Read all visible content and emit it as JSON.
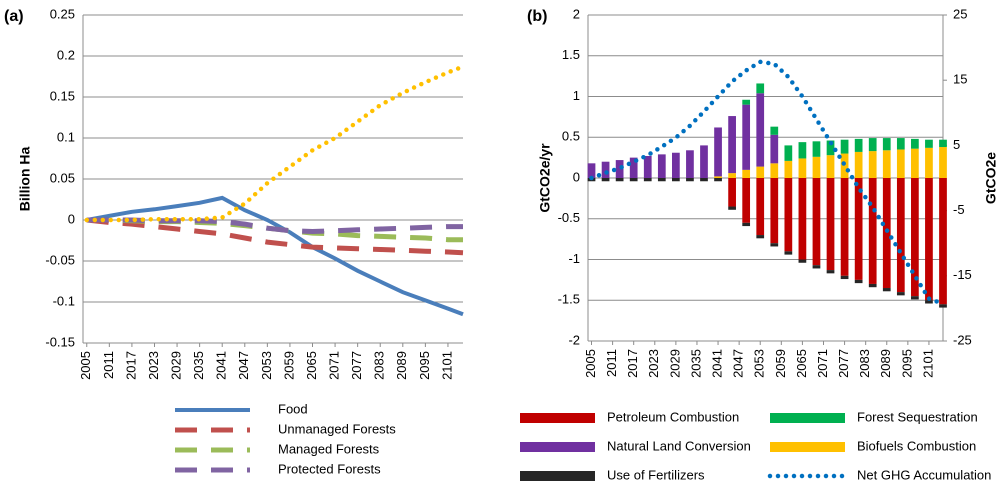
{
  "chart_data": [
    {
      "type": "line",
      "label": "(a)",
      "ylabel": "Billion Ha",
      "x": [
        2005,
        2011,
        2017,
        2023,
        2029,
        2035,
        2041,
        2047,
        2053,
        2059,
        2065,
        2071,
        2077,
        2083,
        2089,
        2095,
        2101,
        2105
      ],
      "xlim": [
        2004,
        2105
      ],
      "xticks": [
        2005,
        2011,
        2017,
        2023,
        2029,
        2035,
        2041,
        2047,
        2053,
        2059,
        2065,
        2071,
        2077,
        2083,
        2089,
        2095,
        2101
      ],
      "ylim": [
        -0.15,
        0.25
      ],
      "yticks": [
        -0.15,
        -0.1,
        -0.05,
        0,
        0.05,
        0.1,
        0.15,
        0.2,
        0.25
      ],
      "grid": true,
      "series": [
        {
          "name": "Food",
          "color": "#4a7ebb",
          "style": "solid",
          "values": [
            0,
            0.005,
            0.01,
            0.013,
            0.017,
            0.021,
            0.027,
            0.012,
            0.0,
            -0.015,
            -0.033,
            -0.047,
            -0.062,
            -0.075,
            -0.088,
            -0.098,
            -0.108,
            -0.115
          ]
        },
        {
          "name": "Unmanaged Forests",
          "color": "#c0504d",
          "style": "dashed",
          "values": [
            0,
            -0.003,
            -0.005,
            -0.008,
            -0.011,
            -0.014,
            -0.017,
            -0.022,
            -0.027,
            -0.03,
            -0.033,
            -0.034,
            -0.035,
            -0.036,
            -0.037,
            -0.038,
            -0.039,
            -0.04
          ]
        },
        {
          "name": "Managed Forests",
          "color": "#9bbb59",
          "style": "dashed",
          "values": [
            0,
            0,
            -0.001,
            -0.002,
            -0.002,
            -0.003,
            -0.004,
            -0.007,
            -0.01,
            -0.013,
            -0.016,
            -0.017,
            -0.019,
            -0.02,
            -0.021,
            -0.022,
            -0.024,
            -0.024
          ]
        },
        {
          "name": "Protected Forests",
          "color": "#8064a2",
          "style": "dashed",
          "values": [
            0,
            0,
            0,
            -0.001,
            -0.001,
            -0.001,
            -0.002,
            -0.005,
            -0.01,
            -0.013,
            -0.014,
            -0.013,
            -0.012,
            -0.011,
            -0.01,
            -0.009,
            -0.008,
            -0.008
          ]
        },
        {
          "color": "#ffc000",
          "style": "dotted",
          "values": [
            0,
            0,
            0,
            0.001,
            0.001,
            0.001,
            0.003,
            0.02,
            0.045,
            0.065,
            0.085,
            0.1,
            0.12,
            0.14,
            0.155,
            0.168,
            0.18,
            0.187
          ]
        }
      ]
    },
    {
      "type": "bar",
      "label": "(b)",
      "ylabel": "GtCO2e/yr",
      "y2label": "GtCO2e",
      "x": [
        2005,
        2009,
        2013,
        2017,
        2021,
        2025,
        2029,
        2033,
        2037,
        2041,
        2045,
        2049,
        2053,
        2057,
        2061,
        2065,
        2069,
        2073,
        2077,
        2081,
        2085,
        2089,
        2093,
        2097,
        2101,
        2105
      ],
      "xlim": [
        2004,
        2105
      ],
      "xticks": [
        2005,
        2011,
        2017,
        2023,
        2029,
        2035,
        2041,
        2047,
        2053,
        2059,
        2065,
        2071,
        2077,
        2083,
        2089,
        2095,
        2101
      ],
      "ylim": [
        -2,
        2
      ],
      "yticks": [
        -2,
        -1.5,
        -1,
        -0.5,
        0,
        0.5,
        1,
        1.5,
        2
      ],
      "y2lim": [
        -25,
        25
      ],
      "y2ticks": [
        -25,
        -15,
        -5,
        5,
        15,
        25
      ],
      "grid": true,
      "series": [
        {
          "name": "Biofuels Combustion",
          "color": "#ffc000",
          "values": [
            0,
            0,
            0,
            0,
            0,
            0,
            0,
            0,
            0,
            0.02,
            0.06,
            0.1,
            0.14,
            0.18,
            0.21,
            0.24,
            0.26,
            0.28,
            0.3,
            0.32,
            0.33,
            0.34,
            0.35,
            0.36,
            0.37,
            0.38
          ]
        },
        {
          "name": "Natural Land Conversion",
          "color": "#7030a0",
          "values": [
            0.18,
            0.2,
            0.22,
            0.25,
            0.27,
            0.29,
            0.31,
            0.34,
            0.4,
            0.6,
            0.7,
            0.8,
            0.9,
            0.35,
            0,
            0,
            0,
            0,
            0,
            0,
            0,
            0,
            0,
            0,
            0,
            0
          ]
        },
        {
          "name": "Forest Sequestration",
          "color": "#00b050",
          "values": [
            0,
            0,
            0,
            0,
            0,
            0,
            0,
            0,
            0,
            0,
            0,
            0.06,
            0.12,
            0.1,
            0.19,
            0.2,
            0.19,
            0.18,
            0.17,
            0.16,
            0.16,
            0.15,
            0.14,
            0.12,
            0.1,
            0.09
          ]
        },
        {
          "name": "Petroleum Combustion",
          "color": "#c00000",
          "values": [
            0,
            0,
            0,
            0,
            0,
            0,
            0,
            0,
            0,
            0,
            -0.35,
            -0.55,
            -0.7,
            -0.8,
            -0.9,
            -1.0,
            -1.07,
            -1.13,
            -1.2,
            -1.25,
            -1.3,
            -1.35,
            -1.4,
            -1.45,
            -1.5,
            -1.55
          ]
        },
        {
          "name": "Use of Fertilizers",
          "color": "#262626",
          "values": [
            -0.04,
            -0.04,
            -0.04,
            -0.04,
            -0.04,
            -0.04,
            -0.04,
            -0.04,
            -0.04,
            -0.04,
            -0.04,
            -0.04,
            -0.04,
            -0.04,
            -0.04,
            -0.04,
            -0.04,
            -0.04,
            -0.04,
            -0.04,
            -0.04,
            -0.04,
            -0.04,
            -0.04,
            -0.04,
            -0.04
          ]
        },
        {
          "name": "Net GHG Accumulation",
          "color": "#0070c0",
          "type": "line",
          "style": "dotted",
          "axis": "y2",
          "values": [
            0,
            0.8,
            1.5,
            2.5,
            3.5,
            4.8,
            6.2,
            8,
            10.2,
            12.5,
            14.8,
            16.5,
            17.8,
            17.5,
            15.5,
            12.5,
            9,
            5.5,
            2,
            -1.5,
            -4.5,
            -8,
            -11.5,
            -15,
            -18.5,
            -19.3
          ]
        }
      ]
    }
  ]
}
